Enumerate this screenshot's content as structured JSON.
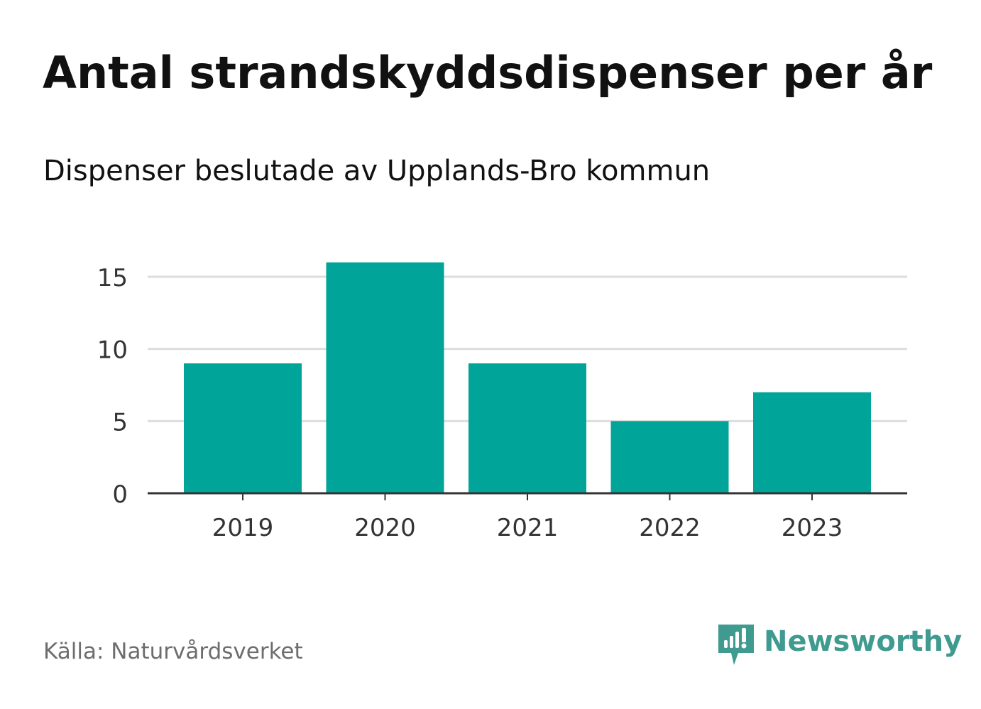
{
  "title": "Antal strandskyddsdispenser per år",
  "subtitle": "Dispenser beslutade av Upplands-Bro kommun",
  "source": "Källa: Naturvårdsverket",
  "brand": {
    "name": "Newsworthy",
    "color": "#3f9a90"
  },
  "colors": {
    "bar": "#00a499",
    "grid": "#dddddd",
    "axis": "#333333",
    "tick_text": "#333333"
  },
  "chart_data": {
    "type": "bar",
    "title": "Antal strandskyddsdispenser per år",
    "subtitle": "Dispenser beslutade av Upplands-Bro kommun",
    "categories": [
      "2019",
      "2020",
      "2021",
      "2022",
      "2023"
    ],
    "values": [
      9,
      16,
      9,
      5,
      7
    ],
    "xlabel": "",
    "ylabel": "",
    "ylim": [
      0,
      16
    ],
    "yticks": [
      0,
      5,
      10,
      15
    ],
    "grid": true,
    "legend": "none"
  }
}
